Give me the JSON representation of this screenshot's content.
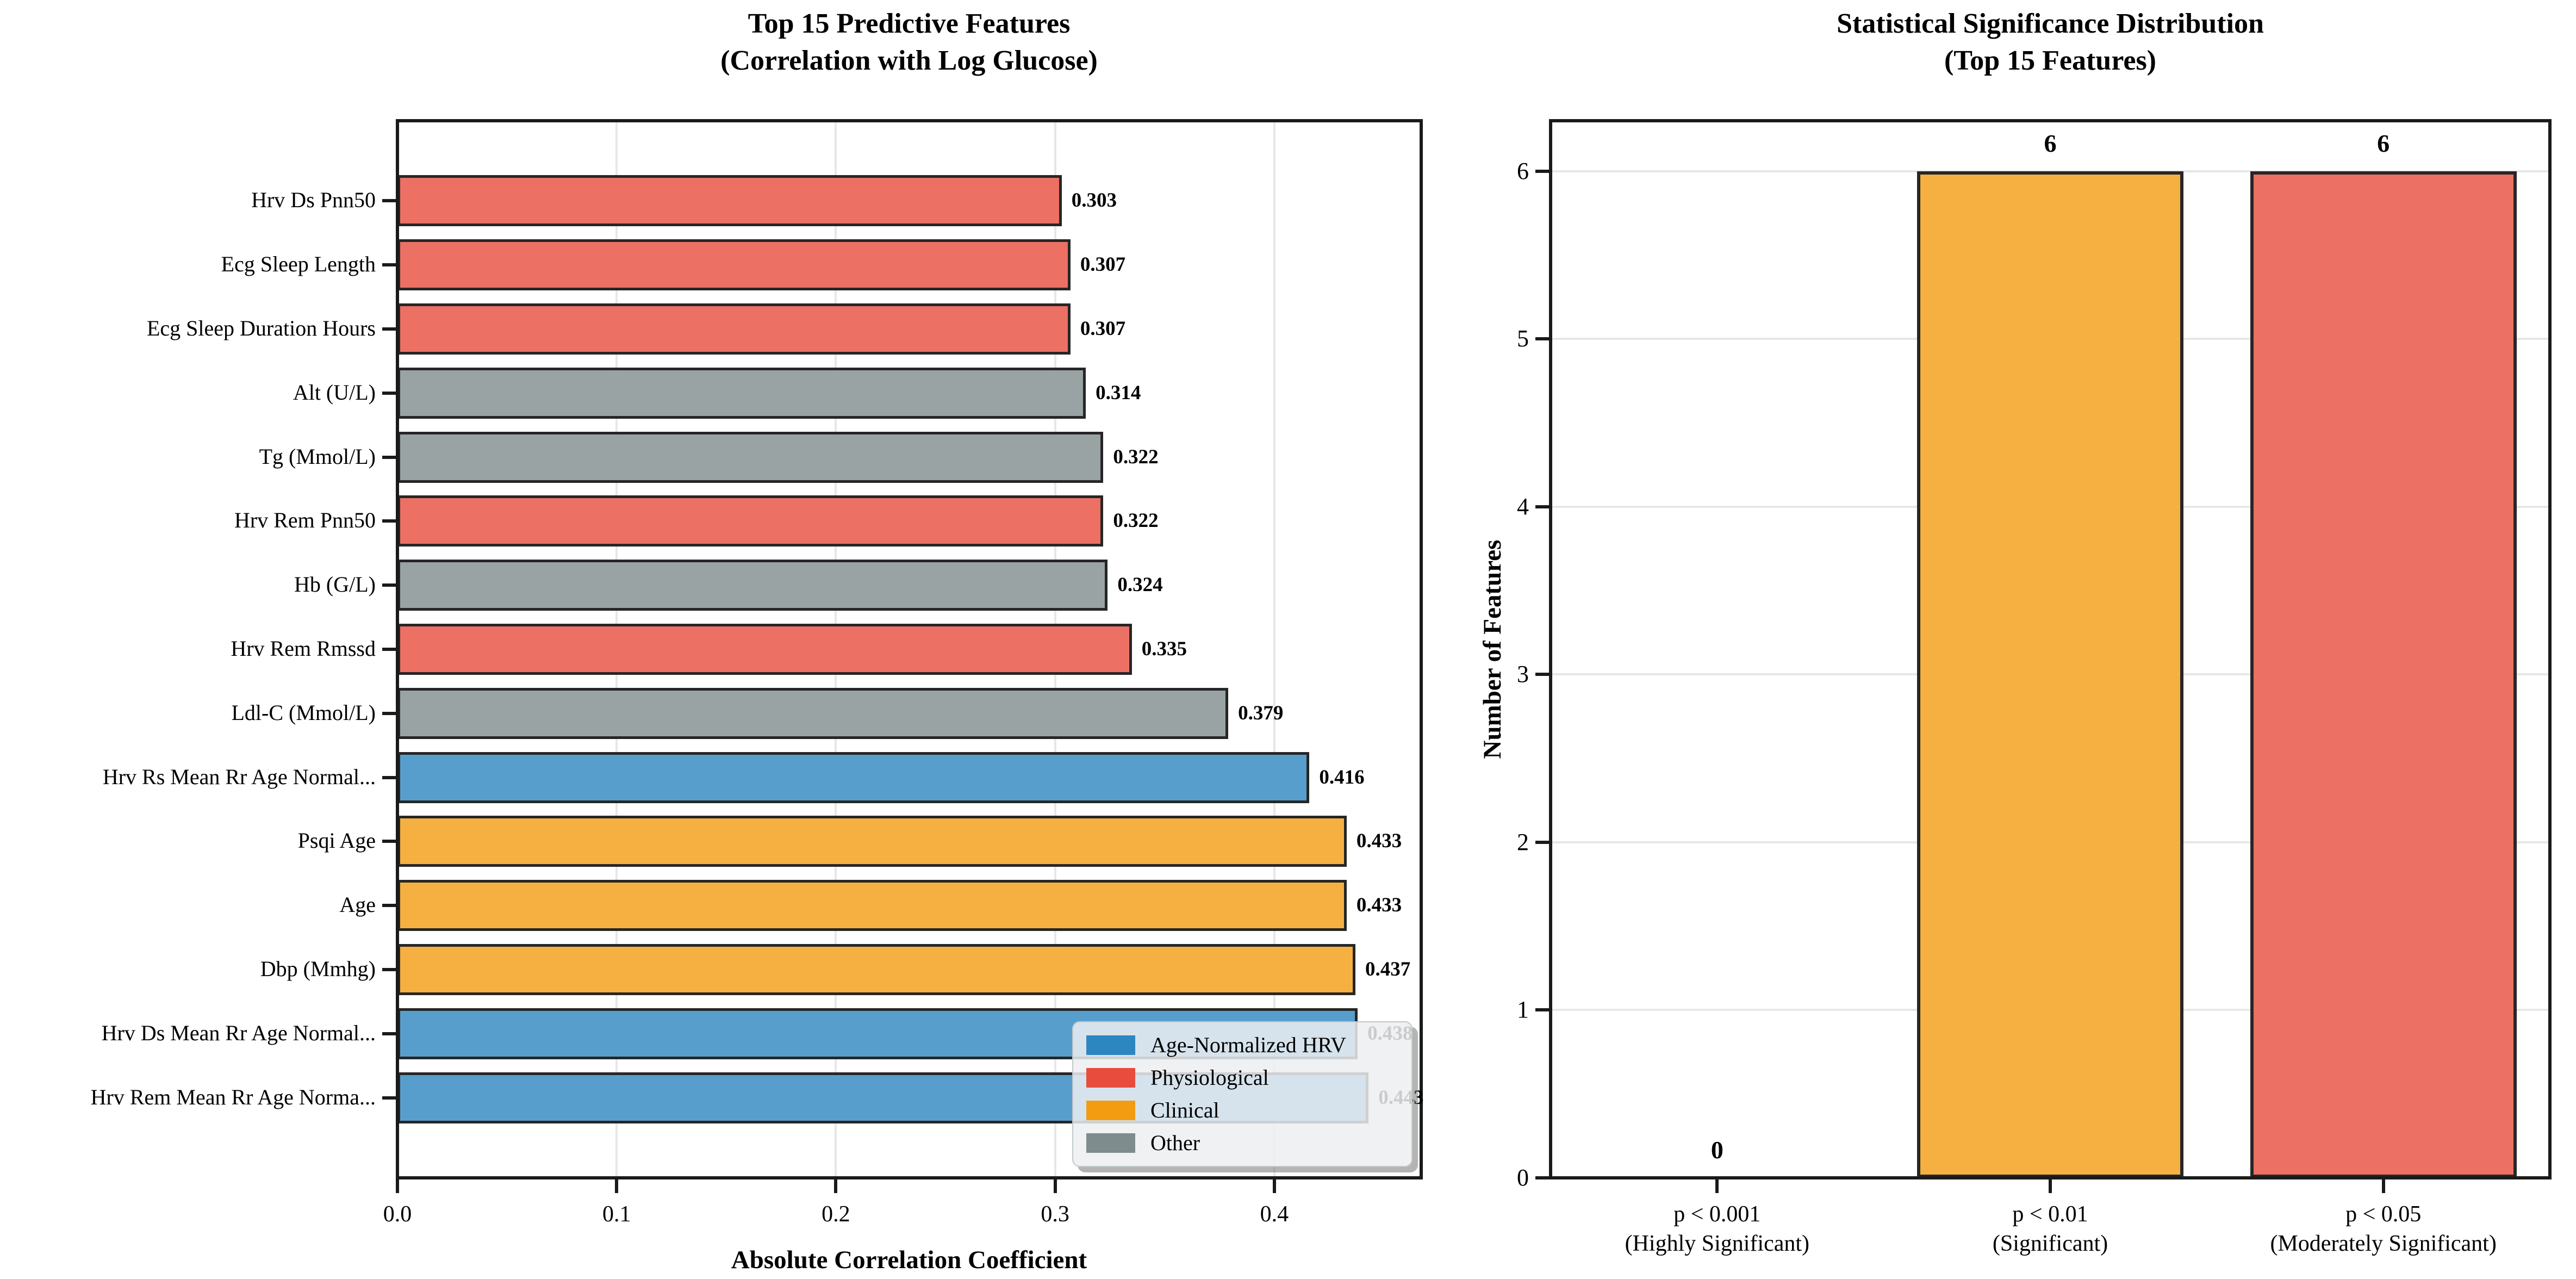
{
  "figure": {
    "background": "#ffffff",
    "palette": {
      "age_normalized_hrv": "#2E86C1",
      "physiological": "#E74C3C",
      "clinical": "#F39C12",
      "other": "#7F8C8D"
    },
    "bar_fill_alpha": 0.8,
    "bar_edge_color": "#262626",
    "grid_color": "#e7e7e7"
  },
  "chart_data": [
    {
      "type": "bar",
      "orientation": "horizontal",
      "title": "Top 15 Predictive Features\n(Correlation with Log Glucose)",
      "xlabel": "Absolute Correlation Coefficient",
      "xlim": [
        0,
        0.467
      ],
      "xticks": [
        "0.0",
        "0.1",
        "0.2",
        "0.3",
        "0.4"
      ],
      "grid": "vertical",
      "bars": [
        {
          "label": "Hrv Ds Pnn50",
          "value": 0.303,
          "value_label": "0.303",
          "category": "physiological"
        },
        {
          "label": "Ecg Sleep Length",
          "value": 0.307,
          "value_label": "0.307",
          "category": "physiological"
        },
        {
          "label": "Ecg Sleep Duration Hours",
          "value": 0.307,
          "value_label": "0.307",
          "category": "physiological"
        },
        {
          "label": "Alt (U/L)",
          "value": 0.314,
          "value_label": "0.314",
          "category": "other"
        },
        {
          "label": "Tg (Mmol/L)",
          "value": 0.322,
          "value_label": "0.322",
          "category": "other"
        },
        {
          "label": "Hrv Rem Pnn50",
          "value": 0.322,
          "value_label": "0.322",
          "category": "physiological"
        },
        {
          "label": "Hb (G/L)",
          "value": 0.324,
          "value_label": "0.324",
          "category": "other"
        },
        {
          "label": "Hrv Rem Rmssd",
          "value": 0.335,
          "value_label": "0.335",
          "category": "physiological"
        },
        {
          "label": "Ldl-C (Mmol/L)",
          "value": 0.379,
          "value_label": "0.379",
          "category": "other"
        },
        {
          "label": "Hrv Rs Mean Rr Age Normal...",
          "value": 0.416,
          "value_label": "0.416",
          "category": "age_normalized_hrv"
        },
        {
          "label": "Psqi Age",
          "value": 0.433,
          "value_label": "0.433",
          "category": "clinical"
        },
        {
          "label": "Age",
          "value": 0.433,
          "value_label": "0.433",
          "category": "clinical"
        },
        {
          "label": "Dbp (Mmhg)",
          "value": 0.437,
          "value_label": "0.437",
          "category": "clinical"
        },
        {
          "label": "Hrv Ds Mean Rr Age Normal...",
          "value": 0.438,
          "value_label": "0.438",
          "category": "age_normalized_hrv"
        },
        {
          "label": "Hrv Rem Mean Rr Age Norma...",
          "value": 0.443,
          "value_label": "0.443",
          "category": "age_normalized_hrv"
        }
      ],
      "legend": {
        "location": "lower right",
        "entries": [
          {
            "label": "Age-Normalized HRV",
            "category": "age_normalized_hrv"
          },
          {
            "label": "Physiological",
            "category": "physiological"
          },
          {
            "label": "Clinical",
            "category": "clinical"
          },
          {
            "label": "Other",
            "category": "other"
          }
        ]
      }
    },
    {
      "type": "bar",
      "orientation": "vertical",
      "title": "Statistical Significance Distribution\n(Top 15 Features)",
      "ylabel": "Number of Features",
      "ylim": [
        0,
        6.3
      ],
      "yticks": [
        "0",
        "1",
        "2",
        "3",
        "4",
        "5",
        "6"
      ],
      "grid": "horizontal",
      "bars": [
        {
          "label": "p < 0.001\n(Highly Significant)",
          "value": 0,
          "value_label": "0",
          "category": null
        },
        {
          "label": "p < 0.01\n(Significant)",
          "value": 6,
          "value_label": "6",
          "category": "clinical"
        },
        {
          "label": "p < 0.05\n(Moderately Significant)",
          "value": 6,
          "value_label": "6",
          "category": "physiological"
        }
      ]
    }
  ]
}
